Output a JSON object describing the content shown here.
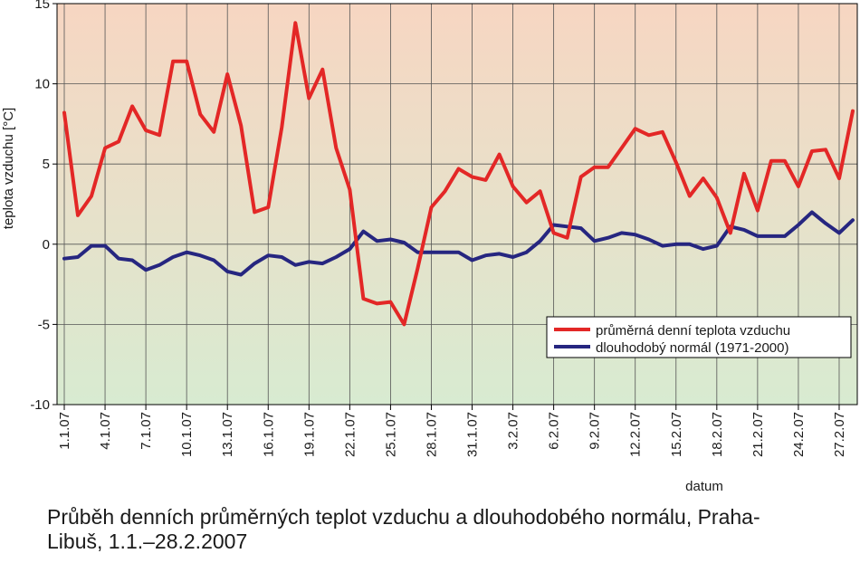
{
  "chart_data": {
    "type": "line",
    "title": "",
    "ylabel": "teplota vzduchu [°C]",
    "xlabel": "datum",
    "ylim": [
      -10,
      15
    ],
    "yticks": [
      -10,
      -5,
      0,
      5,
      10,
      15
    ],
    "grid": true,
    "legend_position": "lower-right",
    "xtick_labels": [
      "1.1.07",
      "4.1.07",
      "7.1.07",
      "10.1.07",
      "13.1.07",
      "16.1.07",
      "19.1.07",
      "22.1.07",
      "25.1.07",
      "28.1.07",
      "31.1.07",
      "3.2.07",
      "6.2.07",
      "9.2.07",
      "12.2.07",
      "15.2.07",
      "18.2.07",
      "21.2.07",
      "24.2.07",
      "27.2.07"
    ],
    "xtick_index": [
      0,
      3,
      6,
      9,
      12,
      15,
      18,
      21,
      24,
      27,
      30,
      33,
      36,
      39,
      42,
      45,
      48,
      51,
      54,
      57
    ],
    "series": [
      {
        "name": "průměrná denní teplota vzduchu",
        "color": "#e32726",
        "values": [
          8.2,
          1.8,
          3.0,
          6.0,
          6.4,
          8.6,
          7.1,
          6.8,
          11.4,
          11.4,
          8.1,
          7.0,
          10.6,
          7.4,
          2.0,
          2.3,
          7.3,
          13.8,
          9.1,
          10.9,
          6.0,
          3.4,
          -3.4,
          -3.7,
          -3.6,
          -5.0,
          -1.5,
          2.3,
          3.3,
          4.7,
          4.2,
          4.0,
          5.6,
          3.6,
          2.6,
          3.3,
          0.7,
          0.4,
          4.2,
          4.8,
          4.8,
          6.0,
          7.2,
          6.8,
          7.0,
          5.1,
          3.0,
          4.1,
          2.9,
          0.7,
          4.4,
          2.1,
          5.2,
          5.2,
          3.6,
          5.8,
          5.9,
          4.1,
          8.3
        ]
      },
      {
        "name": "dlouhodobý normál (1971-2000)",
        "color": "#262680",
        "values": [
          -0.9,
          -0.8,
          -0.1,
          -0.1,
          -0.9,
          -1.0,
          -1.6,
          -1.3,
          -0.8,
          -0.5,
          -0.7,
          -1.0,
          -1.7,
          -1.9,
          -1.2,
          -0.7,
          -0.8,
          -1.3,
          -1.1,
          -1.2,
          -0.8,
          -0.3,
          0.8,
          0.2,
          0.3,
          0.1,
          -0.5,
          -0.5,
          -0.5,
          -0.5,
          -1.0,
          -0.7,
          -0.6,
          -0.8,
          -0.5,
          0.2,
          1.2,
          1.1,
          1.0,
          0.2,
          0.4,
          0.7,
          0.6,
          0.3,
          -0.1,
          0.0,
          0.0,
          -0.3,
          -0.1,
          1.1,
          0.9,
          0.5,
          0.5,
          0.5,
          1.2,
          2.0,
          1.3,
          0.7,
          1.5
        ]
      }
    ]
  },
  "caption": {
    "line1": "Průběh denních průměrných teplot vzduchu a dlouhodobého normálu, Praha-",
    "line2": "Libuš, 1.1.–28.2.2007"
  }
}
